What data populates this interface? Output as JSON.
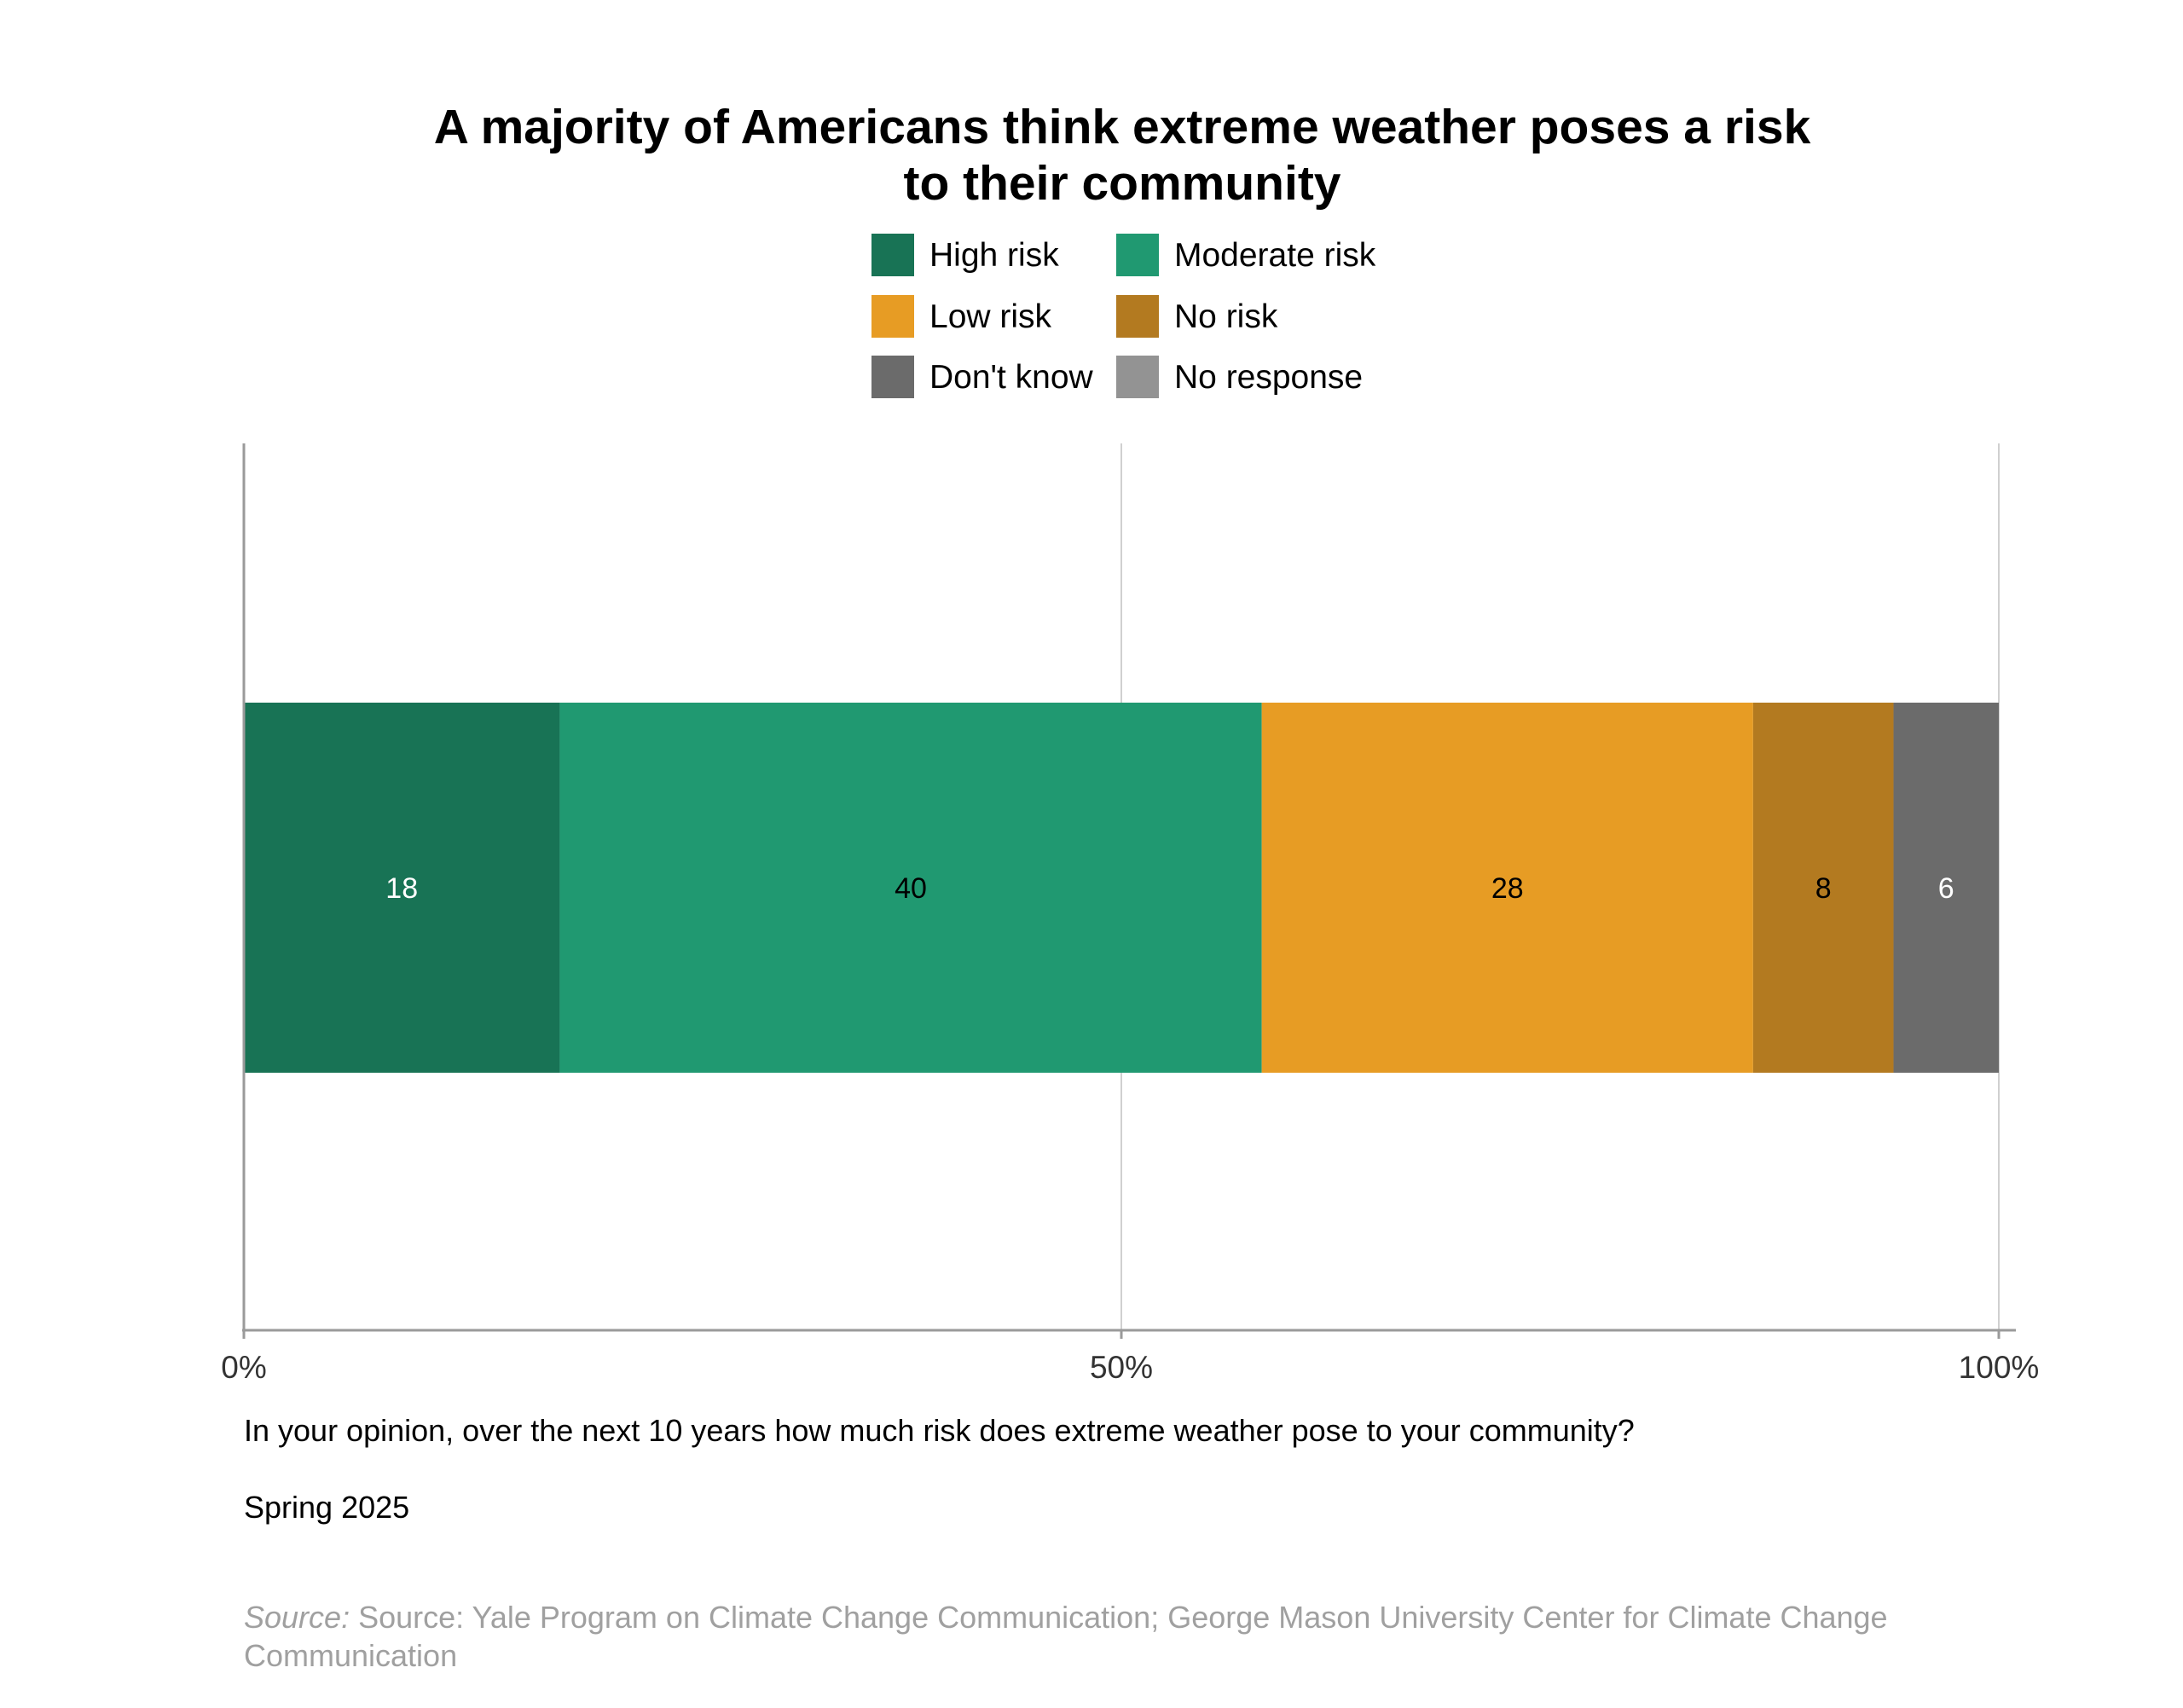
{
  "chart_data": {
    "type": "bar",
    "orientation": "horizontal",
    "stacked": true,
    "title": "A majority of Americans think extreme weather poses a risk\nto their community",
    "categories": [
      ""
    ],
    "series": [
      {
        "name": "High risk",
        "values": [
          18
        ],
        "color": "#187355",
        "label_color": "#ffffff"
      },
      {
        "name": "Moderate risk",
        "values": [
          40
        ],
        "color": "#209971",
        "label_color": "#000000"
      },
      {
        "name": "Low risk",
        "values": [
          28
        ],
        "color": "#E79C24",
        "label_color": "#000000"
      },
      {
        "name": "No risk",
        "values": [
          8
        ],
        "color": "#B37A20",
        "label_color": "#000000"
      },
      {
        "name": "Don't know",
        "values": [
          6
        ],
        "color": "#6B6B6B",
        "label_color": "#ffffff"
      },
      {
        "name": "No response",
        "values": [
          0
        ],
        "color": "#939393",
        "label_color": "#ffffff"
      }
    ],
    "data_labels": [
      "18",
      "40",
      "28",
      "8",
      "6",
      ""
    ],
    "xlim": [
      0,
      100
    ],
    "x_ticks": [
      0,
      50,
      100
    ],
    "x_tick_labels": [
      "0%",
      "50%",
      "100%"
    ],
    "grid": true,
    "legend_position": "top"
  },
  "caption": {
    "question": "In your opinion, over the next 10 years how much risk does extreme weather pose to your community?",
    "wave": "Spring 2025",
    "source_prefix": "Source:",
    "source_text": " Source: Yale Program on Climate Change Communication; George Mason University Center for Climate Change Communication"
  }
}
